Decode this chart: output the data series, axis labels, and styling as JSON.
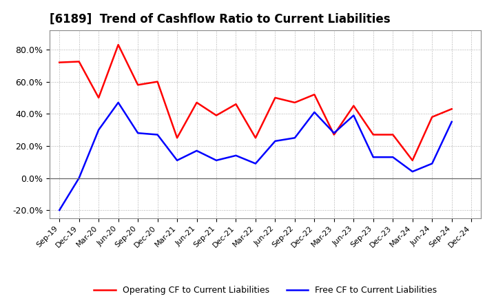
{
  "title": "[6189]  Trend of Cashflow Ratio to Current Liabilities",
  "x_labels": [
    "Sep-19",
    "Dec-19",
    "Mar-20",
    "Jun-20",
    "Sep-20",
    "Dec-20",
    "Mar-21",
    "Jun-21",
    "Sep-21",
    "Dec-21",
    "Mar-22",
    "Jun-22",
    "Sep-22",
    "Dec-22",
    "Mar-23",
    "Jun-23",
    "Sep-23",
    "Dec-23",
    "Mar-24",
    "Jun-24",
    "Sep-24",
    "Dec-24"
  ],
  "operating_cf": [
    72.0,
    72.5,
    50.0,
    83.0,
    58.0,
    60.0,
    25.0,
    47.0,
    39.0,
    46.0,
    25.0,
    50.0,
    47.0,
    52.0,
    27.0,
    45.0,
    27.0,
    27.0,
    11.0,
    38.0,
    43.0,
    null
  ],
  "free_cf": [
    -20.0,
    0.0,
    30.0,
    47.0,
    28.0,
    27.0,
    11.0,
    17.0,
    11.0,
    14.0,
    9.0,
    23.0,
    25.0,
    41.0,
    28.0,
    39.0,
    13.0,
    13.0,
    4.0,
    9.0,
    35.0,
    null
  ],
  "operating_color": "#FF0000",
  "free_color": "#0000FF",
  "ylim": [
    -25,
    92
  ],
  "yticks": [
    -20.0,
    0.0,
    20.0,
    40.0,
    60.0,
    80.0
  ],
  "ytick_labels": [
    "-20.0%",
    "0.0%",
    "20.0%",
    "40.0%",
    "60.0%",
    "80.0%"
  ],
  "legend_operating": "Operating CF to Current Liabilities",
  "legend_free": "Free CF to Current Liabilities",
  "bg_color": "#FFFFFF",
  "plot_bg_color": "#FFFFFF",
  "grid_color": "#AAAAAA",
  "linewidth": 1.8,
  "title_fontsize": 12
}
